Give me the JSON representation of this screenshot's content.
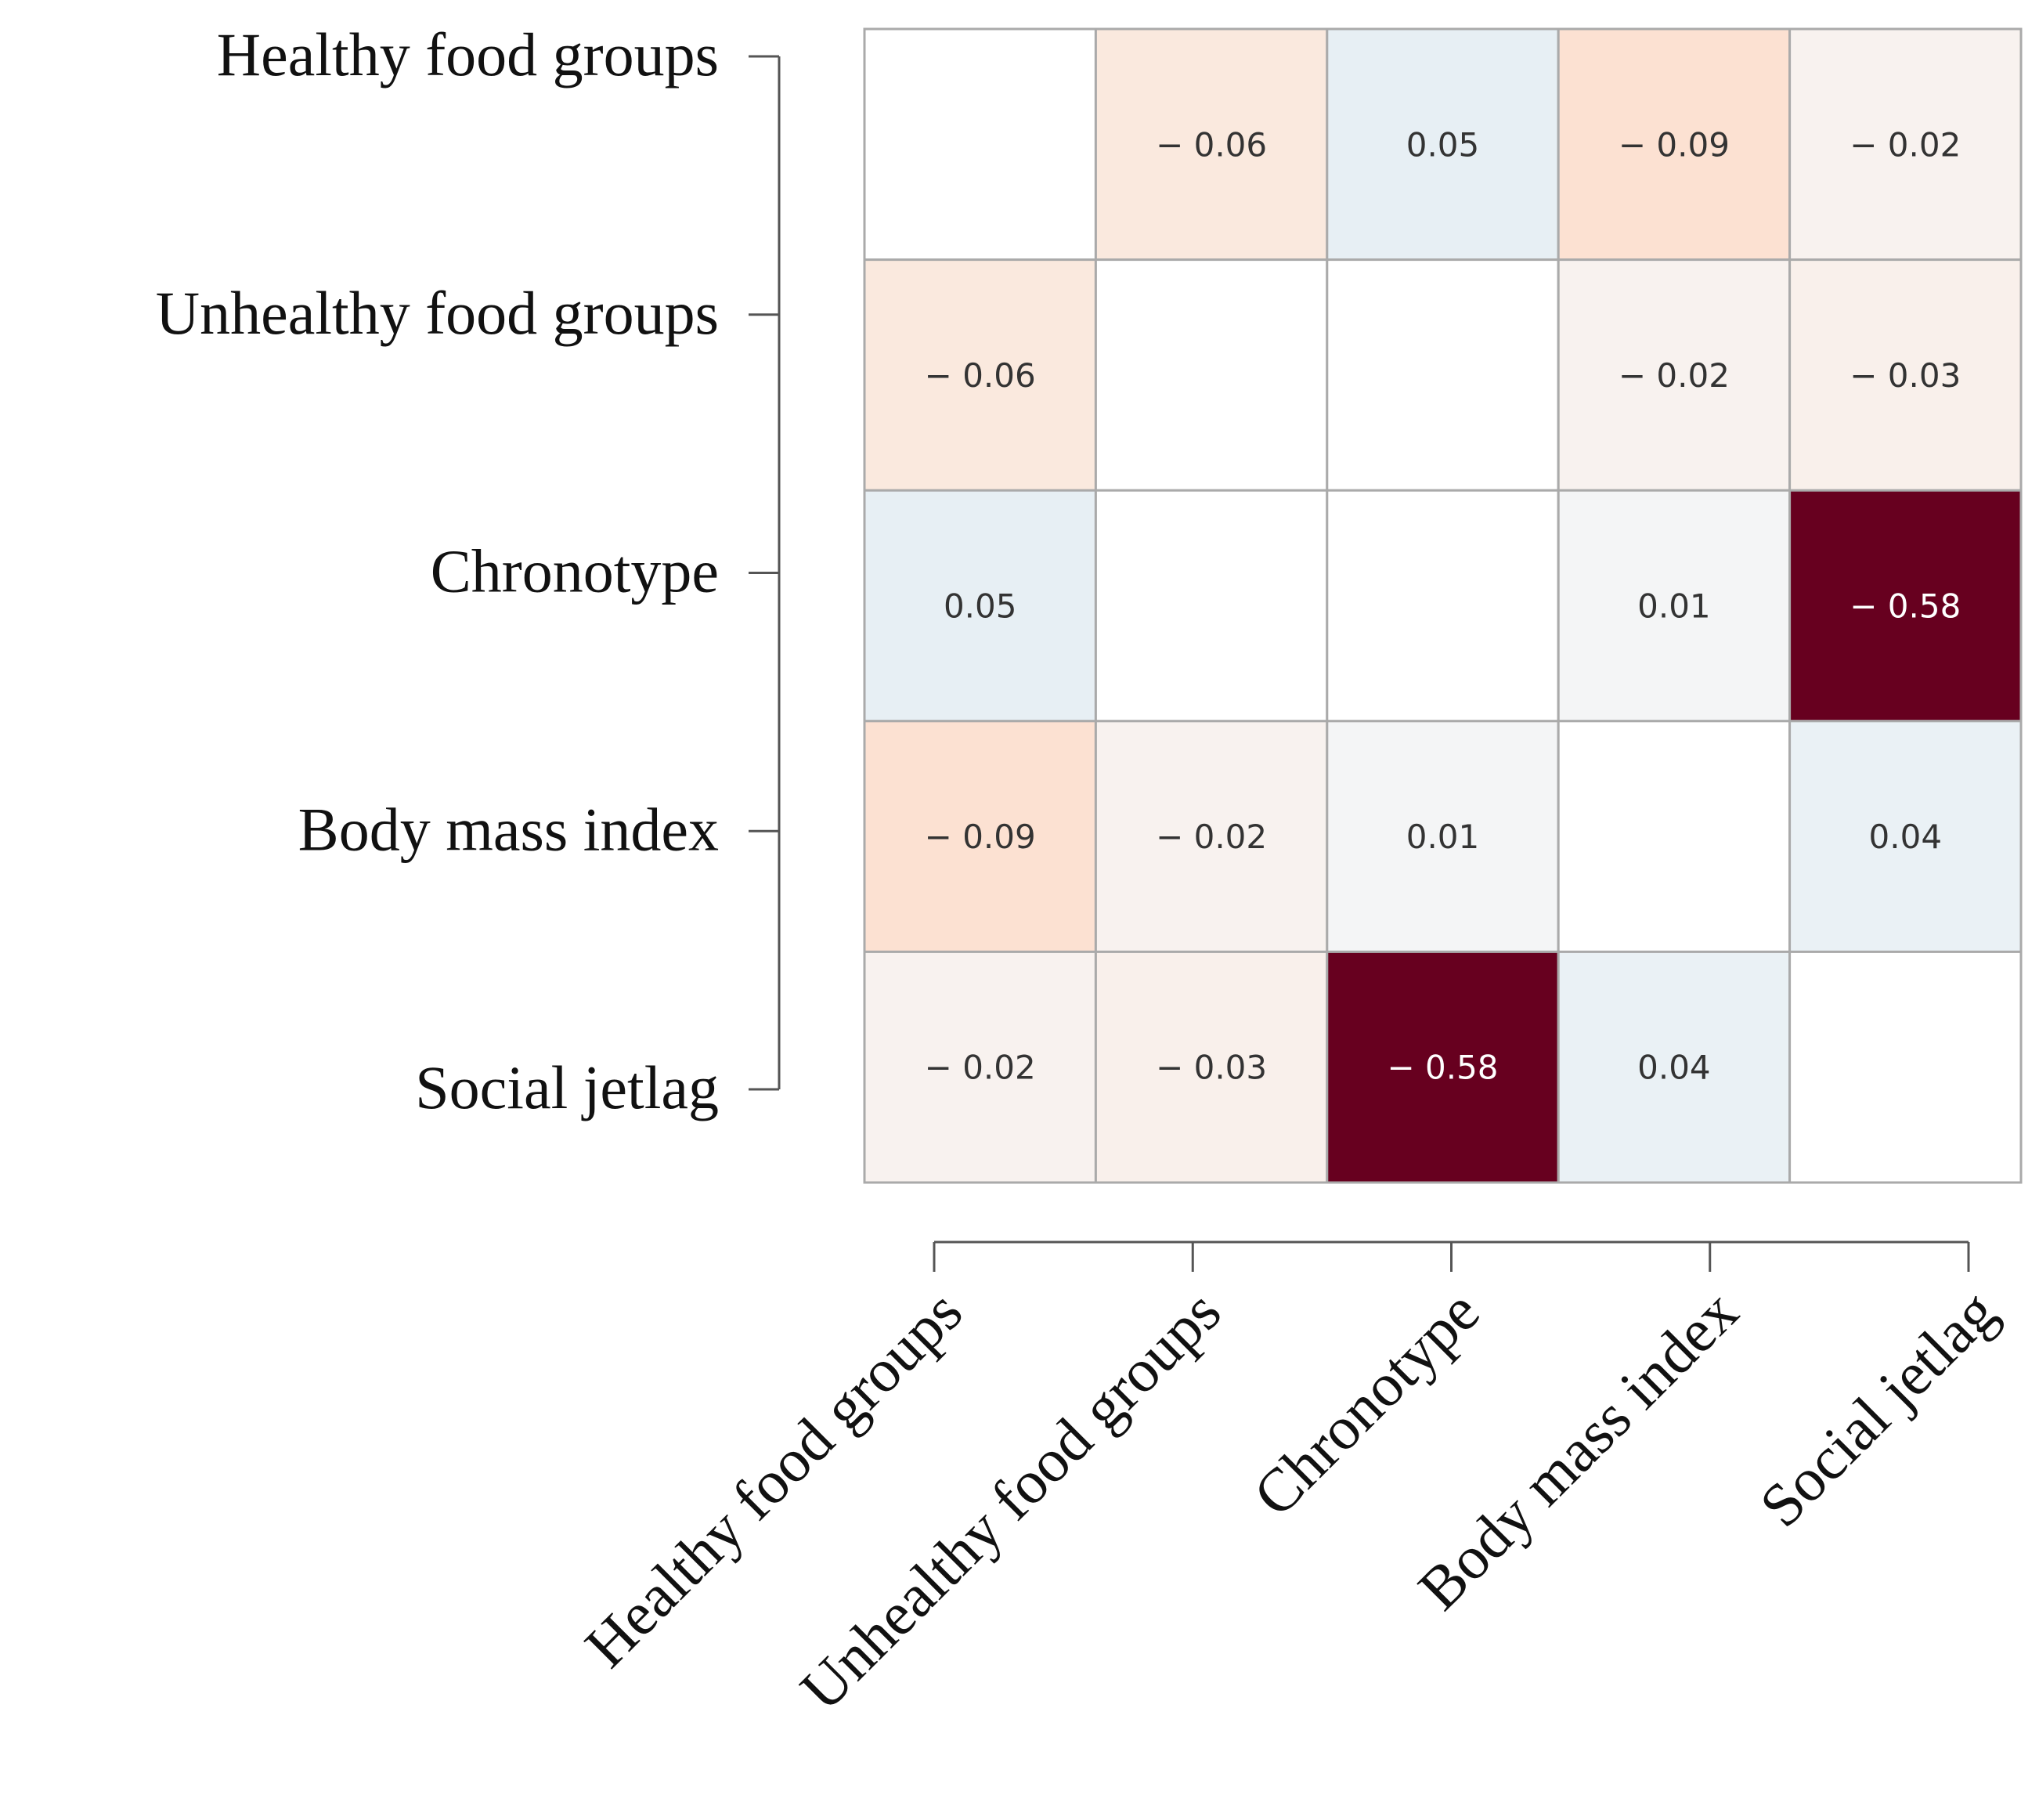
{
  "chart_data": {
    "type": "heatmap",
    "categories": [
      "Healthy food groups",
      "Unhealthy food groups",
      "Chronotype",
      "Body mass index",
      "Social jetlag"
    ],
    "values": [
      [
        null,
        -0.06,
        0.05,
        -0.09,
        -0.02
      ],
      [
        -0.06,
        null,
        null,
        -0.02,
        -0.03
      ],
      [
        0.05,
        null,
        null,
        0.01,
        -0.58
      ],
      [
        -0.09,
        -0.02,
        0.01,
        null,
        0.04
      ],
      [
        -0.02,
        -0.03,
        -0.58,
        0.04,
        null
      ]
    ],
    "value_labels": [
      [
        null,
        "− 0.06",
        "0.05",
        "− 0.09",
        "− 0.02"
      ],
      [
        "− 0.06",
        null,
        null,
        "− 0.02",
        "− 0.03"
      ],
      [
        "0.05",
        null,
        null,
        "0.01",
        "− 0.58"
      ],
      [
        "− 0.09",
        "− 0.02",
        "0.01",
        null,
        "0.04"
      ],
      [
        "− 0.02",
        "− 0.03",
        "− 0.58",
        "0.04",
        null
      ]
    ],
    "colormap": [
      "#67001f",
      "#b2182b",
      "#d6604d",
      "#f4a582",
      "#fddbc7",
      "#f7f7f7",
      "#d1e5f0",
      "#92c5de",
      "#4393c3",
      "#2166ac",
      "#053061"
    ]
  }
}
